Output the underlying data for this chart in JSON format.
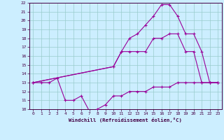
{
  "xlabel": "Windchill (Refroidissement éolien,°C)",
  "bg_color": "#cceeff",
  "line_color": "#990099",
  "grid_color": "#99cccc",
  "xlim": [
    -0.5,
    23.5
  ],
  "ylim": [
    10,
    22
  ],
  "xticks": [
    0,
    1,
    2,
    3,
    4,
    5,
    6,
    7,
    8,
    9,
    10,
    11,
    12,
    13,
    14,
    15,
    16,
    17,
    18,
    19,
    20,
    21,
    22,
    23
  ],
  "yticks": [
    10,
    11,
    12,
    13,
    14,
    15,
    16,
    17,
    18,
    19,
    20,
    21,
    22
  ],
  "line1_x": [
    0,
    1,
    2,
    3,
    4,
    5,
    6,
    7,
    8,
    9,
    10,
    11,
    12,
    13,
    14,
    15,
    16,
    17,
    18,
    19,
    20,
    21,
    22,
    23
  ],
  "line1_y": [
    13.0,
    13.0,
    13.0,
    13.5,
    11.0,
    11.0,
    11.5,
    9.8,
    10.0,
    10.5,
    11.5,
    11.5,
    12.0,
    12.0,
    12.0,
    12.5,
    12.5,
    12.5,
    13.0,
    13.0,
    13.0,
    13.0,
    13.0,
    13.0
  ],
  "line2_x": [
    0,
    10,
    11,
    12,
    13,
    14,
    15,
    16,
    17,
    18,
    19,
    20,
    21,
    22,
    23
  ],
  "line2_y": [
    13.0,
    14.8,
    16.5,
    16.5,
    16.5,
    16.5,
    18.0,
    18.0,
    18.5,
    18.5,
    16.5,
    16.5,
    13.0,
    13.0,
    13.0
  ],
  "line3_x": [
    0,
    10,
    11,
    12,
    13,
    14,
    15,
    16,
    17,
    18,
    19,
    20,
    21,
    22,
    23
  ],
  "line3_y": [
    13.0,
    14.8,
    16.5,
    18.0,
    18.5,
    19.5,
    20.5,
    21.8,
    21.8,
    20.5,
    18.5,
    18.5,
    16.5,
    13.0,
    13.0
  ]
}
